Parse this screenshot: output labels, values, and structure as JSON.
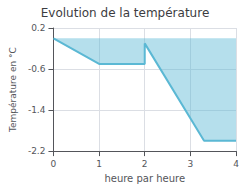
{
  "chart_data": {
    "type": "line",
    "title": "Evolution de la température",
    "xlabel": "heure par heure",
    "ylabel": "Température en °C",
    "x": [
      0,
      1,
      2,
      2,
      3.3,
      4
    ],
    "values": [
      0.0,
      -0.5,
      -0.5,
      -0.1,
      -2.0,
      -2.0
    ],
    "color": "#5bb8d4",
    "xlim": [
      0,
      4
    ],
    "ylim": [
      -2.2,
      0.2
    ],
    "xticks": [
      0,
      1,
      2,
      3,
      4
    ],
    "yticks": [
      0.2,
      -0.6,
      -1.4,
      -2.2
    ],
    "grid": true
  }
}
